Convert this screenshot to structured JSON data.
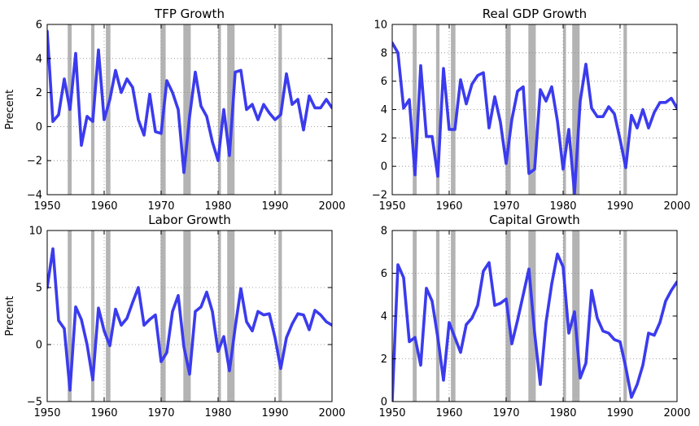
{
  "chart_data": [
    {
      "type": "line",
      "title": "TFP Growth",
      "xlabel": "",
      "ylabel": "Precent",
      "xlim": [
        1950,
        2000
      ],
      "ylim": [
        -4,
        6
      ],
      "xticks": [
        "1950",
        "1960",
        "1970",
        "1980",
        "1990",
        "2000"
      ],
      "yticks": [
        "−4",
        "−2",
        "0",
        "2",
        "4",
        "6"
      ],
      "grid": "horizontal-dotted",
      "recessions": [
        [
          1953.6,
          1954.3
        ],
        [
          1957.7,
          1958.3
        ],
        [
          1960.3,
          1961.1
        ],
        [
          1969.9,
          1970.8
        ],
        [
          1973.9,
          1975.2
        ],
        [
          1980.0,
          1980.5
        ],
        [
          1981.6,
          1982.9
        ],
        [
          1990.6,
          1991.2
        ]
      ],
      "x": [
        1950,
        1951,
        1952,
        1953,
        1954,
        1955,
        1956,
        1957,
        1958,
        1959,
        1960,
        1961,
        1962,
        1963,
        1964,
        1965,
        1966,
        1967,
        1968,
        1969,
        1970,
        1971,
        1972,
        1973,
        1974,
        1975,
        1976,
        1977,
        1978,
        1979,
        1980,
        1981,
        1982,
        1983,
        1984,
        1985,
        1986,
        1987,
        1988,
        1989,
        1990,
        1991,
        1992,
        1993,
        1994,
        1995,
        1996,
        1997,
        1998,
        1999,
        2000
      ],
      "values": [
        5.6,
        0.3,
        0.7,
        2.8,
        1.0,
        4.3,
        -1.1,
        0.6,
        0.3,
        4.5,
        0.4,
        1.6,
        3.3,
        2.0,
        2.8,
        2.3,
        0.4,
        -0.5,
        1.9,
        -0.3,
        -0.4,
        2.7,
        2.0,
        1.0,
        -2.7,
        0.6,
        3.2,
        1.2,
        0.6,
        -0.9,
        -2.0,
        1.0,
        -1.7,
        3.2,
        3.3,
        1.0,
        1.3,
        0.4,
        1.3,
        0.8,
        0.4,
        0.7,
        3.1,
        1.3,
        1.6,
        -0.2,
        1.8,
        1.1,
        1.1,
        1.6,
        1.1
      ]
    },
    {
      "type": "line",
      "title": "Real GDP Growth",
      "xlabel": "",
      "ylabel": "",
      "xlim": [
        1950,
        2000
      ],
      "ylim": [
        -2,
        10
      ],
      "xticks": [
        "1950",
        "1960",
        "1970",
        "1980",
        "1990",
        "2000"
      ],
      "yticks": [
        "−2",
        "0",
        "2",
        "4",
        "6",
        "8",
        "10"
      ],
      "grid": "horizontal-dotted",
      "recessions": [
        [
          1953.6,
          1954.3
        ],
        [
          1957.7,
          1958.3
        ],
        [
          1960.3,
          1961.1
        ],
        [
          1969.9,
          1970.8
        ],
        [
          1973.9,
          1975.2
        ],
        [
          1980.0,
          1980.5
        ],
        [
          1981.6,
          1982.9
        ],
        [
          1990.6,
          1991.2
        ]
      ],
      "x": [
        1950,
        1951,
        1952,
        1953,
        1954,
        1955,
        1956,
        1957,
        1958,
        1959,
        1960,
        1961,
        1962,
        1963,
        1964,
        1965,
        1966,
        1967,
        1968,
        1969,
        1970,
        1971,
        1972,
        1973,
        1974,
        1975,
        1976,
        1977,
        1978,
        1979,
        1980,
        1981,
        1982,
        1983,
        1984,
        1985,
        1986,
        1987,
        1988,
        1989,
        1990,
        1991,
        1992,
        1993,
        1994,
        1995,
        1996,
        1997,
        1998,
        1999,
        2000
      ],
      "values": [
        8.7,
        8.0,
        4.1,
        4.7,
        -0.6,
        7.1,
        2.1,
        2.1,
        -0.7,
        6.9,
        2.6,
        2.6,
        6.1,
        4.4,
        5.8,
        6.4,
        6.6,
        2.7,
        4.9,
        3.1,
        0.2,
        3.3,
        5.3,
        5.6,
        -0.5,
        -0.2,
        5.4,
        4.6,
        5.6,
        3.2,
        -0.2,
        2.6,
        -1.9,
        4.6,
        7.2,
        4.1,
        3.5,
        3.5,
        4.2,
        3.7,
        1.9,
        -0.1,
        3.6,
        2.7,
        4.0,
        2.7,
        3.8,
        4.5,
        4.5,
        4.8,
        4.1
      ]
    },
    {
      "type": "line",
      "title": "Labor Growth",
      "xlabel": "",
      "ylabel": "Precent",
      "xlim": [
        1950,
        2000
      ],
      "ylim": [
        -5,
        10
      ],
      "xticks": [
        "1950",
        "1960",
        "1970",
        "1980",
        "1990",
        "2000"
      ],
      "yticks": [
        "−5",
        "0",
        "5",
        "10"
      ],
      "grid": "horizontal-dotted",
      "recessions": [
        [
          1953.6,
          1954.3
        ],
        [
          1957.7,
          1958.3
        ],
        [
          1960.3,
          1961.1
        ],
        [
          1969.9,
          1970.8
        ],
        [
          1973.9,
          1975.2
        ],
        [
          1980.0,
          1980.5
        ],
        [
          1981.6,
          1982.9
        ],
        [
          1990.6,
          1991.2
        ]
      ],
      "x": [
        1950,
        1951,
        1952,
        1953,
        1954,
        1955,
        1956,
        1957,
        1958,
        1959,
        1960,
        1961,
        1962,
        1963,
        1964,
        1965,
        1966,
        1967,
        1968,
        1969,
        1970,
        1971,
        1972,
        1973,
        1974,
        1975,
        1976,
        1977,
        1978,
        1979,
        1980,
        1981,
        1982,
        1983,
        1984,
        1985,
        1986,
        1987,
        1988,
        1989,
        1990,
        1991,
        1992,
        1993,
        1994,
        1995,
        1996,
        1997,
        1998,
        1999,
        2000
      ],
      "values": [
        5.0,
        8.4,
        2.1,
        1.4,
        -4.0,
        3.3,
        2.2,
        0.0,
        -3.1,
        3.2,
        1.2,
        -0.1,
        3.1,
        1.7,
        2.3,
        3.7,
        5.0,
        1.7,
        2.2,
        2.6,
        -1.5,
        -0.7,
        2.9,
        4.3,
        -0.2,
        -2.6,
        2.9,
        3.3,
        4.6,
        2.9,
        -0.6,
        0.7,
        -2.3,
        1.5,
        4.9,
        2.0,
        1.2,
        2.9,
        2.6,
        2.7,
        0.6,
        -2.1,
        0.6,
        1.8,
        2.7,
        2.6,
        1.3,
        3.0,
        2.6,
        2.0,
        1.7
      ]
    },
    {
      "type": "line",
      "title": "Capital Growth",
      "xlabel": "",
      "ylabel": "",
      "xlim": [
        1950,
        2000
      ],
      "ylim": [
        0,
        8
      ],
      "xticks": [
        "1950",
        "1960",
        "1970",
        "1980",
        "1990",
        "2000"
      ],
      "yticks": [
        "0",
        "2",
        "4",
        "6",
        "8"
      ],
      "grid": "horizontal-dotted",
      "recessions": [
        [
          1953.6,
          1954.3
        ],
        [
          1957.7,
          1958.3
        ],
        [
          1960.3,
          1961.1
        ],
        [
          1969.9,
          1970.8
        ],
        [
          1973.9,
          1975.2
        ],
        [
          1980.0,
          1980.5
        ],
        [
          1981.6,
          1982.9
        ],
        [
          1990.6,
          1991.2
        ]
      ],
      "x": [
        1950,
        1951,
        1952,
        1953,
        1954,
        1955,
        1956,
        1957,
        1958,
        1959,
        1960,
        1961,
        1962,
        1963,
        1964,
        1965,
        1966,
        1967,
        1968,
        1969,
        1970,
        1971,
        1972,
        1973,
        1974,
        1975,
        1976,
        1977,
        1978,
        1979,
        1980,
        1981,
        1982,
        1983,
        1984,
        1985,
        1986,
        1987,
        1988,
        1989,
        1990,
        1991,
        1992,
        1993,
        1994,
        1995,
        1996,
        1997,
        1998,
        1999,
        2000
      ],
      "values": [
        0.0,
        6.4,
        5.8,
        2.8,
        3.0,
        1.7,
        5.3,
        4.7,
        3.0,
        1.0,
        3.7,
        3.0,
        2.3,
        3.6,
        3.9,
        4.5,
        6.1,
        6.5,
        4.5,
        4.6,
        4.8,
        2.7,
        3.8,
        5.0,
        6.2,
        3.2,
        0.8,
        3.7,
        5.5,
        6.9,
        6.3,
        3.2,
        4.2,
        1.1,
        1.8,
        5.2,
        3.9,
        3.3,
        3.2,
        2.9,
        2.8,
        1.6,
        0.2,
        0.8,
        1.7,
        3.2,
        3.1,
        3.7,
        4.7,
        5.2,
        5.6
      ]
    }
  ],
  "colors": {
    "line": "#3b3bee",
    "recession_band": "#b3b3b3",
    "grid": "#888888",
    "frame": "#000000"
  }
}
